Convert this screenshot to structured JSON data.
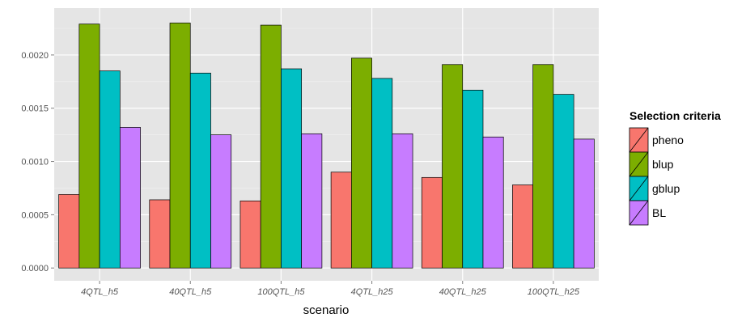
{
  "chart_data": {
    "type": "bar",
    "title": "",
    "xlabel": "scenario",
    "ylabel": "",
    "categories": [
      "4QTL_h5",
      "40QTL_h5",
      "100QTL_h5",
      "4QTL_h25",
      "40QTL_h25",
      "100QTL_h25"
    ],
    "series": [
      {
        "name": "pheno",
        "color": "#F8766D",
        "values": [
          0.00069,
          0.00064,
          0.00063,
          0.0009,
          0.00085,
          0.00078
        ]
      },
      {
        "name": "blup",
        "color": "#7CAE00",
        "values": [
          0.00229,
          0.0023,
          0.00228,
          0.00197,
          0.00191,
          0.00191
        ]
      },
      {
        "name": "gblup",
        "color": "#00BFC4",
        "values": [
          0.00185,
          0.00183,
          0.00187,
          0.00178,
          0.00167,
          0.00163
        ]
      },
      {
        "name": "BL",
        "color": "#C77CFF",
        "values": [
          0.00132,
          0.00125,
          0.00126,
          0.00126,
          0.00123,
          0.00121
        ]
      }
    ],
    "ylim": [
      -0.00012,
      0.00244
    ],
    "yticks": [
      "0.0000",
      "0.0005",
      "0.0010",
      "0.0015",
      "0.0020"
    ],
    "ytick_values": [
      0,
      0.0005,
      0.001,
      0.0015,
      0.002
    ],
    "grid": true,
    "background": "#E5E5E5",
    "legend": {
      "title": "Selection criteria",
      "position": "right"
    }
  }
}
